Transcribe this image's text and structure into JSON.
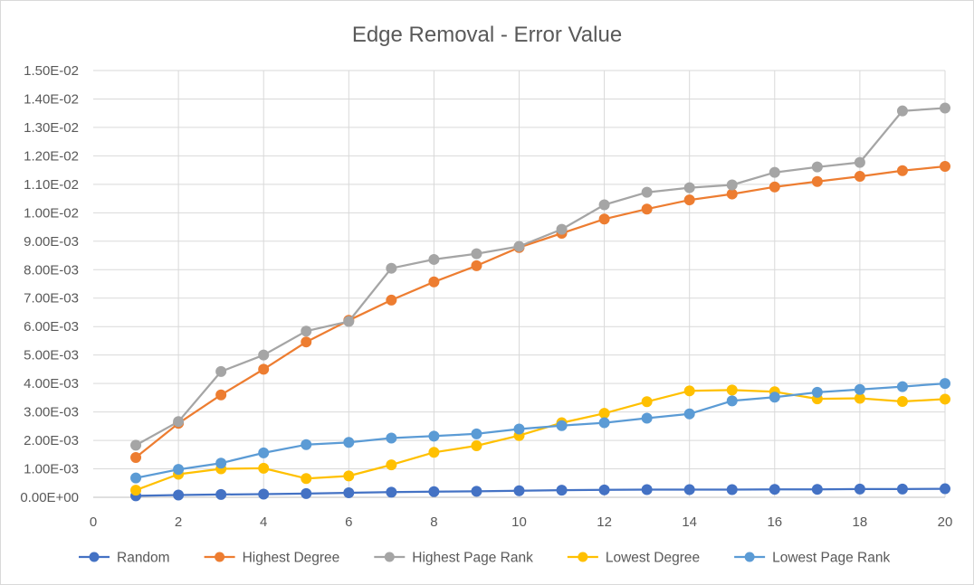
{
  "chart_data": {
    "type": "line",
    "title": "Edge Removal - Error Value",
    "xlabel": "",
    "ylabel": "",
    "xlim": [
      0,
      20
    ],
    "ylim": [
      0,
      0.015
    ],
    "x_ticks": [
      0,
      2,
      4,
      6,
      8,
      10,
      12,
      14,
      16,
      18,
      20
    ],
    "y_ticks": [
      {
        "value": 0.0,
        "label": "0.00E+00"
      },
      {
        "value": 0.001,
        "label": "1.00E-03"
      },
      {
        "value": 0.002,
        "label": "2.00E-03"
      },
      {
        "value": 0.003,
        "label": "3.00E-03"
      },
      {
        "value": 0.004,
        "label": "4.00E-03"
      },
      {
        "value": 0.005,
        "label": "5.00E-03"
      },
      {
        "value": 0.006,
        "label": "6.00E-03"
      },
      {
        "value": 0.007,
        "label": "7.00E-03"
      },
      {
        "value": 0.008,
        "label": "8.00E-03"
      },
      {
        "value": 0.009,
        "label": "9.00E-03"
      },
      {
        "value": 0.01,
        "label": "1.00E-02"
      },
      {
        "value": 0.011,
        "label": "1.10E-02"
      },
      {
        "value": 0.012,
        "label": "1.20E-02"
      },
      {
        "value": 0.013,
        "label": "1.30E-02"
      },
      {
        "value": 0.014,
        "label": "1.40E-02"
      },
      {
        "value": 0.015,
        "label": "1.50E-02"
      }
    ],
    "grid": "horizontal-and-vertical",
    "legend_position": "bottom",
    "x": [
      1,
      2,
      3,
      4,
      5,
      6,
      7,
      8,
      9,
      10,
      11,
      12,
      13,
      14,
      15,
      16,
      17,
      18,
      19,
      20
    ],
    "series": [
      {
        "name": "Random",
        "color": "#4472c4",
        "values": [
          5e-05,
          8e-05,
          0.0001,
          0.00011,
          0.00013,
          0.00016,
          0.00018,
          0.0002,
          0.00021,
          0.00023,
          0.00025,
          0.00026,
          0.00027,
          0.00027,
          0.00027,
          0.00028,
          0.00028,
          0.00029,
          0.00029,
          0.0003
        ]
      },
      {
        "name": "Highest Degree",
        "color": "#ed7d31",
        "values": [
          0.0014,
          0.0026,
          0.0036,
          0.0045,
          0.00546,
          0.00622,
          0.00693,
          0.00757,
          0.00814,
          0.00878,
          0.00928,
          0.00978,
          0.01013,
          0.01045,
          0.01066,
          0.01091,
          0.0111,
          0.01128,
          0.01148,
          0.01163
        ]
      },
      {
        "name": "Highest Page Rank",
        "color": "#a5a5a5",
        "values": [
          0.00183,
          0.00266,
          0.00442,
          0.005,
          0.00584,
          0.00618,
          0.00805,
          0.00836,
          0.00856,
          0.00882,
          0.00942,
          0.01028,
          0.01072,
          0.01088,
          0.01098,
          0.01142,
          0.01161,
          0.01177,
          0.01358,
          0.01368
        ]
      },
      {
        "name": "Lowest Degree",
        "color": "#ffc000",
        "values": [
          0.00025,
          0.00081,
          0.001,
          0.00102,
          0.00066,
          0.00075,
          0.00114,
          0.00158,
          0.00181,
          0.00217,
          0.00262,
          0.00295,
          0.00336,
          0.00374,
          0.00377,
          0.00371,
          0.00346,
          0.00348,
          0.00337,
          0.00345
        ]
      },
      {
        "name": "Lowest Page Rank",
        "color": "#5b9bd5",
        "values": [
          0.00068,
          0.00098,
          0.0012,
          0.00156,
          0.00185,
          0.00193,
          0.00208,
          0.00215,
          0.00223,
          0.0024,
          0.00252,
          0.00262,
          0.00278,
          0.00293,
          0.00339,
          0.00352,
          0.00369,
          0.00379,
          0.00389,
          0.004
        ]
      }
    ]
  }
}
